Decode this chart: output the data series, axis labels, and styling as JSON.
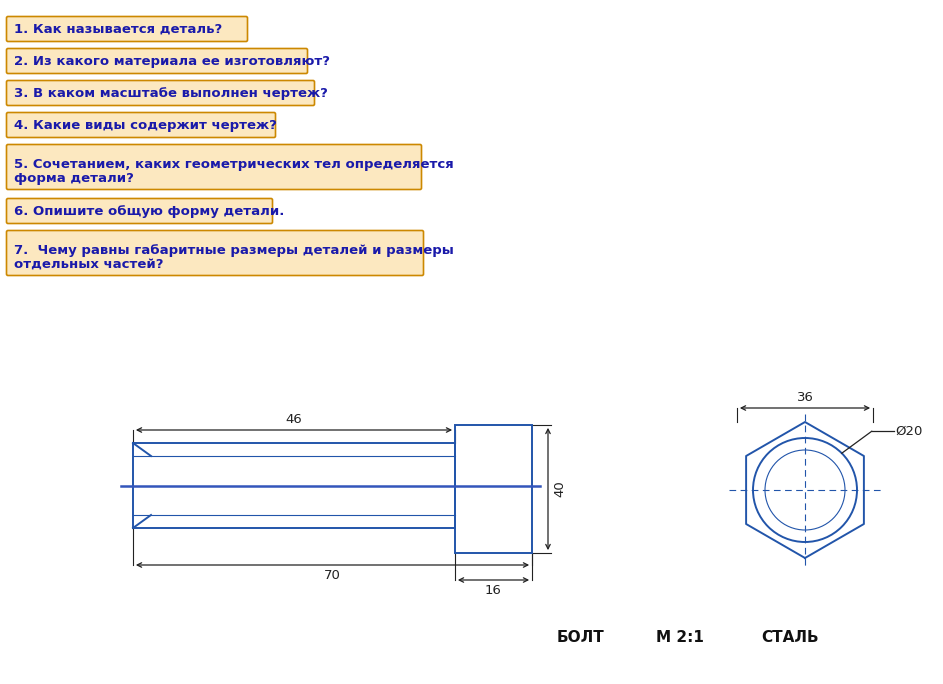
{
  "title_color": "#cc0000",
  "questions": [
    "1. Как называется деталь?",
    "2. Из какого материала ее изготовляют?",
    "3. В каком масштабе выполнен чертеж?",
    "4. Какие виды содержит чертеж?",
    "5. Сочетанием, каких геометрических тел определяется\nформа детали?",
    "6. Опишите общую форму детали.",
    "7.  Чему равны габаритные размеры деталей и размеры\nотдельных частей?"
  ],
  "box_facecolor": "#fce8c0",
  "box_edgecolor": "#cc8800",
  "text_color": "#1a1aaa",
  "drawing_line_color": "#2255aa",
  "bg_color": "#ffffff",
  "bolt_label": "БОЛТ",
  "scale_label": "M 2:1",
  "material_label": "СТАЛЬ",
  "dim_46": "46",
  "dim_70": "70",
  "dim_40": "40",
  "dim_16": "16",
  "dim_36": "36",
  "dim_20": "Ø20"
}
